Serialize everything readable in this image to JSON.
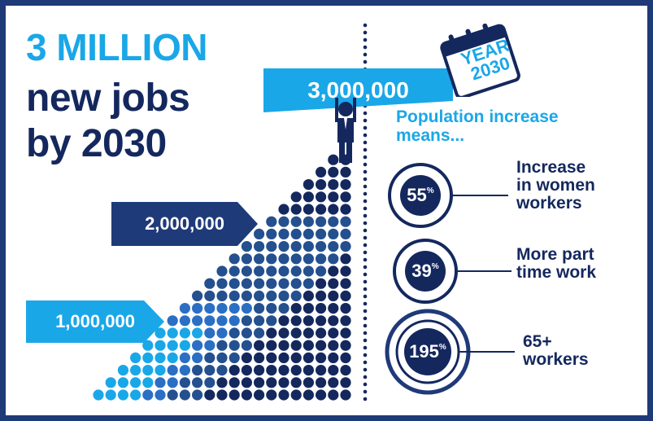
{
  "headline": {
    "line1": "3 MILLION",
    "line2": "new jobs",
    "line3": "by 2030"
  },
  "markers": [
    {
      "label": "1,000,000",
      "color": "#1aa7e8"
    },
    {
      "label": "2,000,000",
      "color": "#1f3a78"
    },
    {
      "label": "3,000,000",
      "color": "#1aa7e8"
    }
  ],
  "calendar": {
    "line1": "YEAR",
    "line2": "2030"
  },
  "population": {
    "line1": "Population increase",
    "line2": "means..."
  },
  "stats": [
    {
      "value": "55",
      "unit": "%",
      "line1": "Increase",
      "line2": "in women",
      "line3": "workers"
    },
    {
      "value": "39",
      "unit": "%",
      "line1": "More part",
      "line2": "time work"
    },
    {
      "value": "195",
      "unit": "%",
      "line1": "65+",
      "line2": "workers"
    }
  ],
  "colors": {
    "navy": "#14285e",
    "mid_blue": "#1f3a78",
    "light_blue": "#1aa7e8",
    "border": "#1f3a78"
  }
}
